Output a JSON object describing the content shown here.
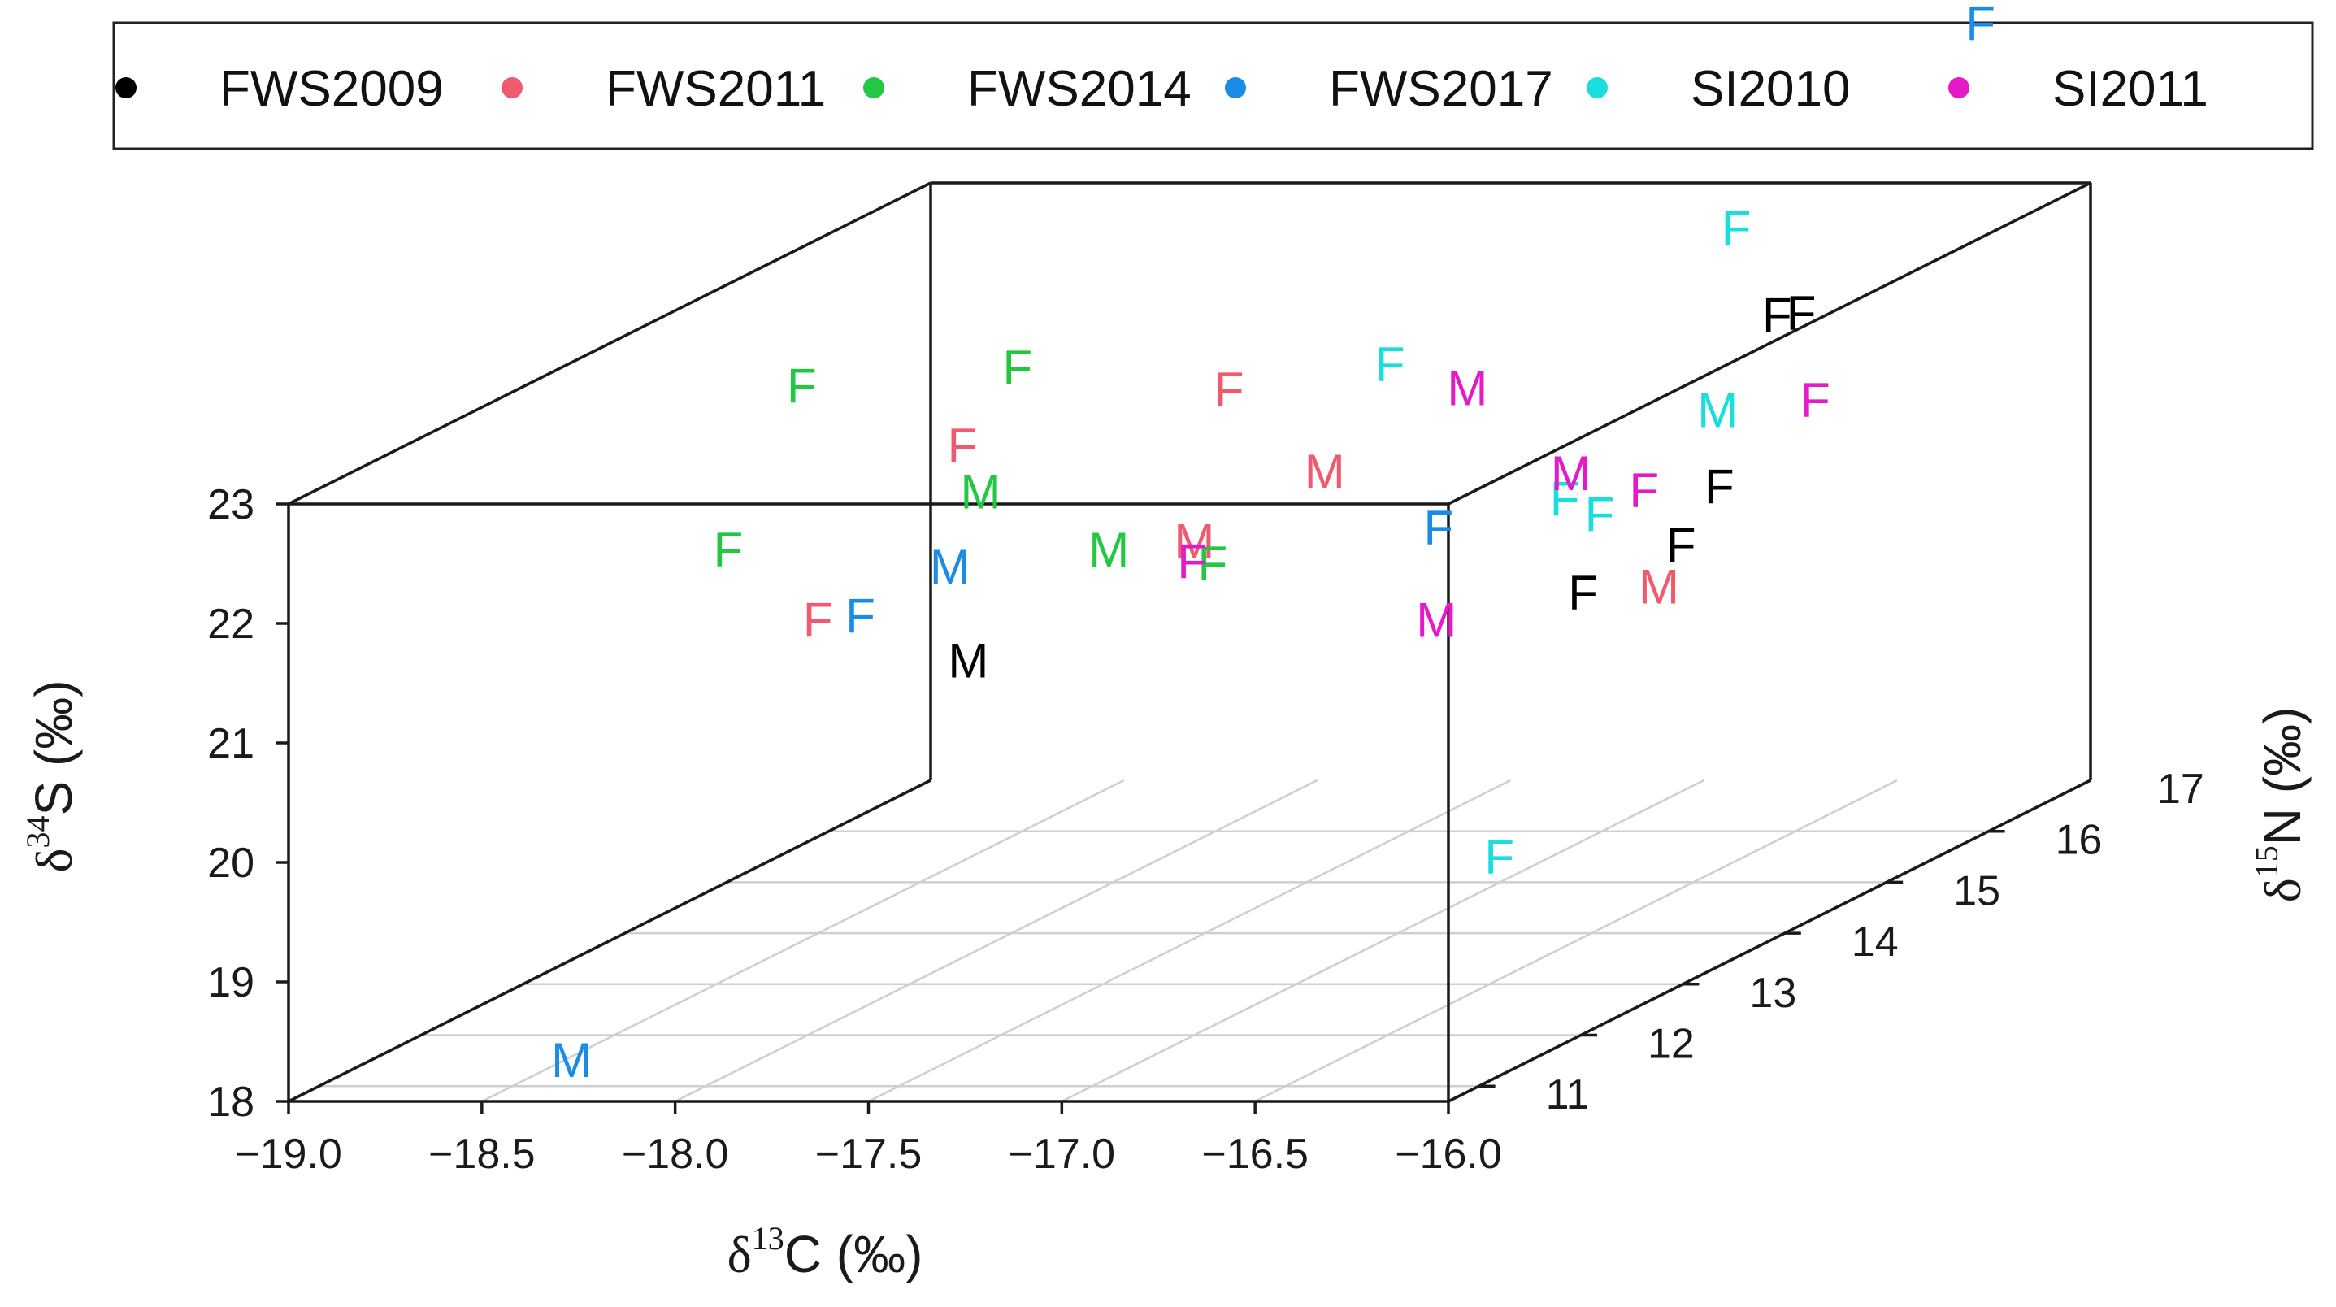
{
  "chart_data": {
    "type": "scatter",
    "title": "",
    "axes": {
      "x": {
        "name_prefix": "δ",
        "name_sup": "13",
        "name_main": "C (‰)",
        "range": [
          -19.0,
          -16.0
        ],
        "ticks": [
          -19.0,
          -18.5,
          -18.0,
          -17.5,
          -17.0,
          -16.5,
          -16.0
        ],
        "tick_labels": [
          "−19.0",
          "−18.5",
          "−18.0",
          "−17.5",
          "−17.0",
          "−16.5",
          "−16.0"
        ]
      },
      "y": {
        "name_prefix": "δ",
        "name_sup": "15",
        "name_main": "N (‰)",
        "range": [
          10.7,
          17.0
        ],
        "ticks": [
          11,
          12,
          13,
          14,
          15,
          16,
          17
        ],
        "tick_labels": [
          "11",
          "12",
          "13",
          "14",
          "15",
          "16",
          "17"
        ]
      },
      "z": {
        "name_prefix": "δ",
        "name_sup": "34",
        "name_main": "S (‰)",
        "range": [
          18,
          23
        ],
        "ticks": [
          18,
          19,
          20,
          21,
          22,
          23
        ],
        "tick_labels": [
          "18",
          "19",
          "20",
          "21",
          "22",
          "23"
        ]
      }
    },
    "legend": {
      "position": "top",
      "entries": [
        {
          "name": "FWS2009",
          "color": "#000000"
        },
        {
          "name": "FWS2011",
          "color": "#F05A6E"
        },
        {
          "name": "FWS2014",
          "color": "#22C842"
        },
        {
          "name": "FWS2017",
          "color": "#1A8CE6"
        },
        {
          "name": "SI2010",
          "color": "#18DEDE"
        },
        {
          "name": "SI2011",
          "color": "#E619C6"
        }
      ]
    },
    "series": [
      {
        "name": "FWS2009",
        "color": "#000000",
        "points": [
          {
            "label": "F",
            "x": -16.3,
            "y": 15.3,
            "z": 22.6
          },
          {
            "label": "F",
            "x": -16.6,
            "y": 16.2,
            "z": 22.2
          },
          {
            "label": "F",
            "x": -16.1,
            "y": 12.4,
            "z": 21.5
          },
          {
            "label": "M",
            "x": -17.4,
            "y": 11.3,
            "z": 21.4
          },
          {
            "label": "F",
            "x": -16.4,
            "y": 14.5,
            "z": 21.0
          },
          {
            "label": "F",
            "x": -15.8,
            "y": 12.6,
            "z": 22.3
          }
        ]
      },
      {
        "name": "FWS2011",
        "color": "#F05A6E",
        "points": [
          {
            "label": "F",
            "x": -17.2,
            "y": 13.1,
            "z": 22.9
          },
          {
            "label": "F",
            "x": -17.6,
            "y": 12.0,
            "z": 22.9
          },
          {
            "label": "M",
            "x": -16.9,
            "y": 12.9,
            "z": 22.3
          },
          {
            "label": "M",
            "x": -17.0,
            "y": 12.0,
            "z": 22.1
          },
          {
            "label": "F",
            "x": -18.0,
            "y": 12.1,
            "z": 21.4
          },
          {
            "label": "M",
            "x": -16.8,
            "y": 15.8,
            "z": 20.1
          }
        ]
      },
      {
        "name": "FWS2014",
        "color": "#22C842",
        "points": [
          {
            "label": "F",
            "x": -18.2,
            "y": 12.7,
            "z": 23.1
          },
          {
            "label": "F",
            "x": -17.8,
            "y": 13.3,
            "z": 23.0
          },
          {
            "label": "M",
            "x": -17.5,
            "y": 11.8,
            "z": 22.6
          },
          {
            "label": "F",
            "x": -18.1,
            "y": 11.6,
            "z": 22.2
          },
          {
            "label": "M",
            "x": -17.3,
            "y": 12.3,
            "z": 21.9
          },
          {
            "label": "F",
            "x": -16.9,
            "y": 11.8,
            "z": 22.0
          }
        ]
      },
      {
        "name": "FWS2017",
        "color": "#1A8CE6",
        "points": [
          {
            "label": "F",
            "x": -16.1,
            "y": 16.3,
            "z": 24.6
          },
          {
            "label": "M",
            "x": -17.5,
            "y": 11.5,
            "z": 22.1
          },
          {
            "label": "F",
            "x": -17.6,
            "y": 11.0,
            "z": 21.9
          },
          {
            "label": "F",
            "x": -16.5,
            "y": 12.5,
            "z": 22.0
          },
          {
            "label": "M",
            "x": -18.4,
            "y": 11.2,
            "z": 18.1
          }
        ]
      },
      {
        "name": "SI2010",
        "color": "#18DEDE",
        "points": [
          {
            "label": "F",
            "x": -16.6,
            "y": 15.8,
            "z": 23.1
          },
          {
            "label": "F",
            "x": -17.1,
            "y": 14.3,
            "z": 22.6
          },
          {
            "label": "M",
            "x": -16.2,
            "y": 14.1,
            "z": 22.3
          },
          {
            "label": "F",
            "x": -16.2,
            "y": 12.6,
            "z": 22.2
          },
          {
            "label": "F",
            "x": -16.4,
            "y": 13.7,
            "z": 21.6
          },
          {
            "label": "F",
            "x": -16.0,
            "y": 11.2,
            "z": 19.8
          }
        ]
      },
      {
        "name": "SI2011",
        "color": "#E619C6",
        "points": [
          {
            "label": "M",
            "x": -16.9,
            "y": 14.3,
            "z": 22.4
          },
          {
            "label": "F",
            "x": -16.9,
            "y": 11.6,
            "z": 22.1
          },
          {
            "label": "M",
            "x": -16.5,
            "y": 13.8,
            "z": 21.9
          },
          {
            "label": "F",
            "x": -16.1,
            "y": 13.0,
            "z": 22.1
          },
          {
            "label": "M",
            "x": -16.4,
            "y": 12.1,
            "z": 21.4
          },
          {
            "label": "F",
            "x": -16.0,
            "y": 14.3,
            "z": 22.3
          }
        ]
      }
    ]
  }
}
